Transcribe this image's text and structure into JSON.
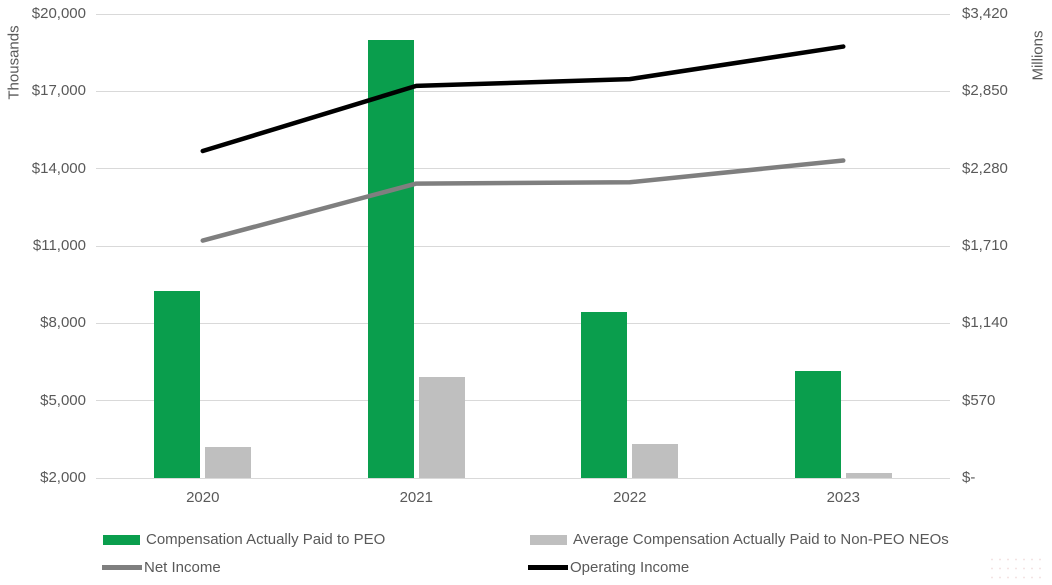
{
  "chart_data": {
    "type": "combo-bar-line",
    "categories": [
      "2020",
      "2021",
      "2022",
      "2023"
    ],
    "left_axis": {
      "title": "Thousands",
      "min": 2000,
      "max": 20000,
      "step": 3000,
      "tick_labels_top_to_bottom": [
        "$20,000",
        "$17,000",
        "$14,000",
        "$11,000",
        "$8,000",
        "$5,000",
        "$2,000"
      ]
    },
    "right_axis": {
      "title": "Millions",
      "min": 0,
      "max": 3420,
      "step": 570,
      "tick_labels_top_to_bottom": [
        "$3,420",
        "$2,850",
        "$2,280",
        "$1,710",
        "$1,140",
        "$570",
        "$-"
      ]
    },
    "bar_series": [
      {
        "name": "Compensation Actually Paid to PEO",
        "axis": "left",
        "color": "#0A9E4D",
        "values": [
          9250,
          19000,
          8450,
          6150
        ]
      },
      {
        "name": "Average Compensation Actually Paid to Non-PEO NEOs",
        "axis": "left",
        "color": "#BFBFBF",
        "values": [
          3200,
          5900,
          3300,
          2200
        ]
      }
    ],
    "line_series": [
      {
        "name": "Net Income",
        "axis": "right",
        "color": "#7F7F7F",
        "values": [
          1750,
          2170,
          2180,
          2340
        ]
      },
      {
        "name": "Operating Income",
        "axis": "right",
        "color": "#000000",
        "values": [
          2410,
          2890,
          2940,
          3180
        ]
      }
    ],
    "grid": true,
    "legend_position": "bottom",
    "colors": {
      "text": "#595959",
      "gridline": "#D9D9D9",
      "background": "#FFFFFF"
    }
  }
}
